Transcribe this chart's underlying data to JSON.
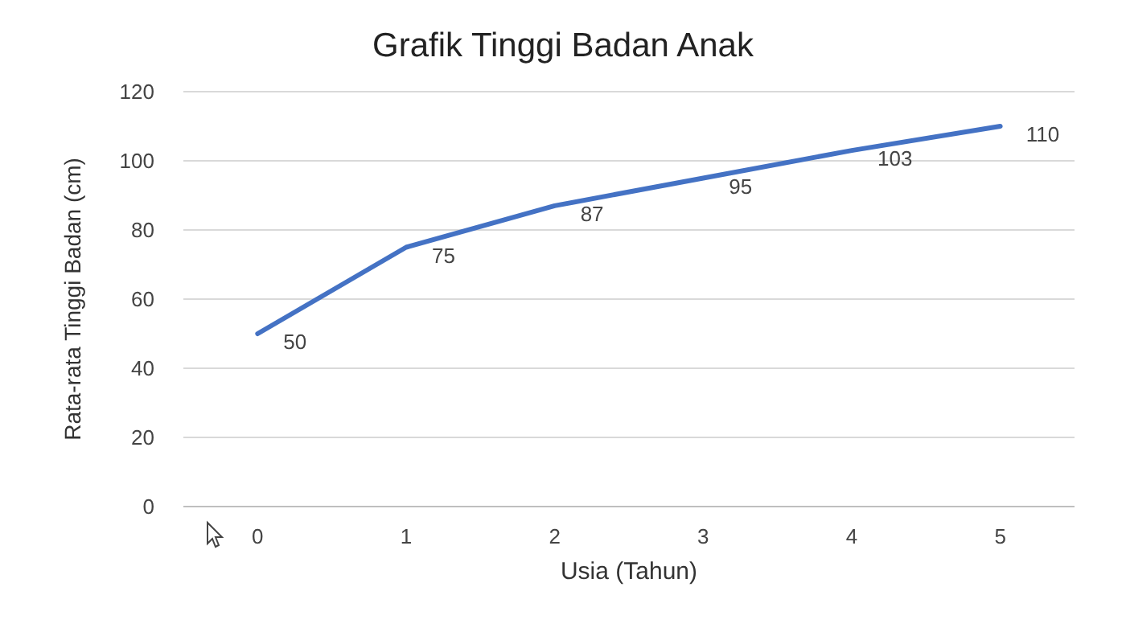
{
  "chart_data": {
    "type": "line",
    "title": "Grafik Tinggi Badan Anak",
    "xlabel": "Usia (Tahun)",
    "ylabel": "Rata-rata Tinggi Badan (cm)",
    "categories": [
      "0",
      "1",
      "2",
      "3",
      "4",
      "5"
    ],
    "values": [
      50,
      75,
      87,
      95,
      103,
      110
    ],
    "color": "#4472c4",
    "ylim": [
      0,
      120
    ],
    "yticks": [
      0,
      20,
      40,
      60,
      80,
      100,
      120
    ],
    "grid": "y",
    "data_labels": true,
    "marker": "none",
    "line_style": "solid"
  }
}
